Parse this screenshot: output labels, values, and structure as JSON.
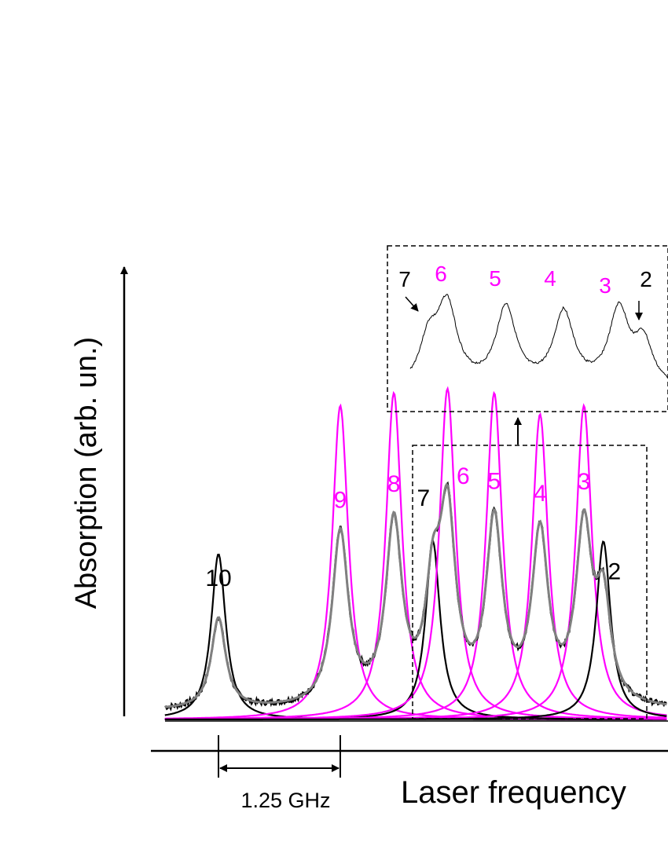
{
  "chart_data": {
    "type": "line",
    "title": "",
    "xlabel": "Laser frequency",
    "ylabel": "Absorption (arb. un.)",
    "x_unit": "GHz",
    "ylim": [
      0,
      1
    ],
    "grid": false,
    "colors": {
      "experiment": "#000000",
      "fit_total": "#808080",
      "component_magenta": "#ff00ff",
      "component_black": "#000000"
    },
    "scale_bar": {
      "label": "1.25 GHz",
      "from": 0,
      "to": 1.25
    },
    "peaks": [
      {
        "label": "10",
        "x": 0.0,
        "amplitude": 0.39,
        "width": 0.18,
        "color": "#000000"
      },
      {
        "label": "9",
        "x": 1.25,
        "amplitude": 0.74,
        "width": 0.2,
        "color": "#ff00ff"
      },
      {
        "label": "8",
        "x": 1.8,
        "amplitude": 0.77,
        "width": 0.2,
        "color": "#ff00ff"
      },
      {
        "label": "7",
        "x": 2.2,
        "amplitude": 0.42,
        "width": 0.18,
        "color": "#000000"
      },
      {
        "label": "6",
        "x": 2.35,
        "amplitude": 0.78,
        "width": 0.2,
        "color": "#ff00ff"
      },
      {
        "label": "5",
        "x": 2.83,
        "amplitude": 0.77,
        "width": 0.2,
        "color": "#ff00ff"
      },
      {
        "label": "4",
        "x": 3.3,
        "amplitude": 0.72,
        "width": 0.2,
        "color": "#ff00ff"
      },
      {
        "label": "3",
        "x": 3.75,
        "amplitude": 0.74,
        "width": 0.2,
        "color": "#ff00ff"
      },
      {
        "label": "2",
        "x": 3.95,
        "amplitude": 0.42,
        "width": 0.18,
        "color": "#000000"
      }
    ],
    "inset": {
      "labels": [
        {
          "text": "7",
          "color": "#000000"
        },
        {
          "text": "6",
          "color": "#ff00ff"
        },
        {
          "text": "5",
          "color": "#ff00ff"
        },
        {
          "text": "4",
          "color": "#ff00ff"
        },
        {
          "text": "3",
          "color": "#ff00ff"
        },
        {
          "text": "2",
          "color": "#000000"
        }
      ]
    }
  }
}
